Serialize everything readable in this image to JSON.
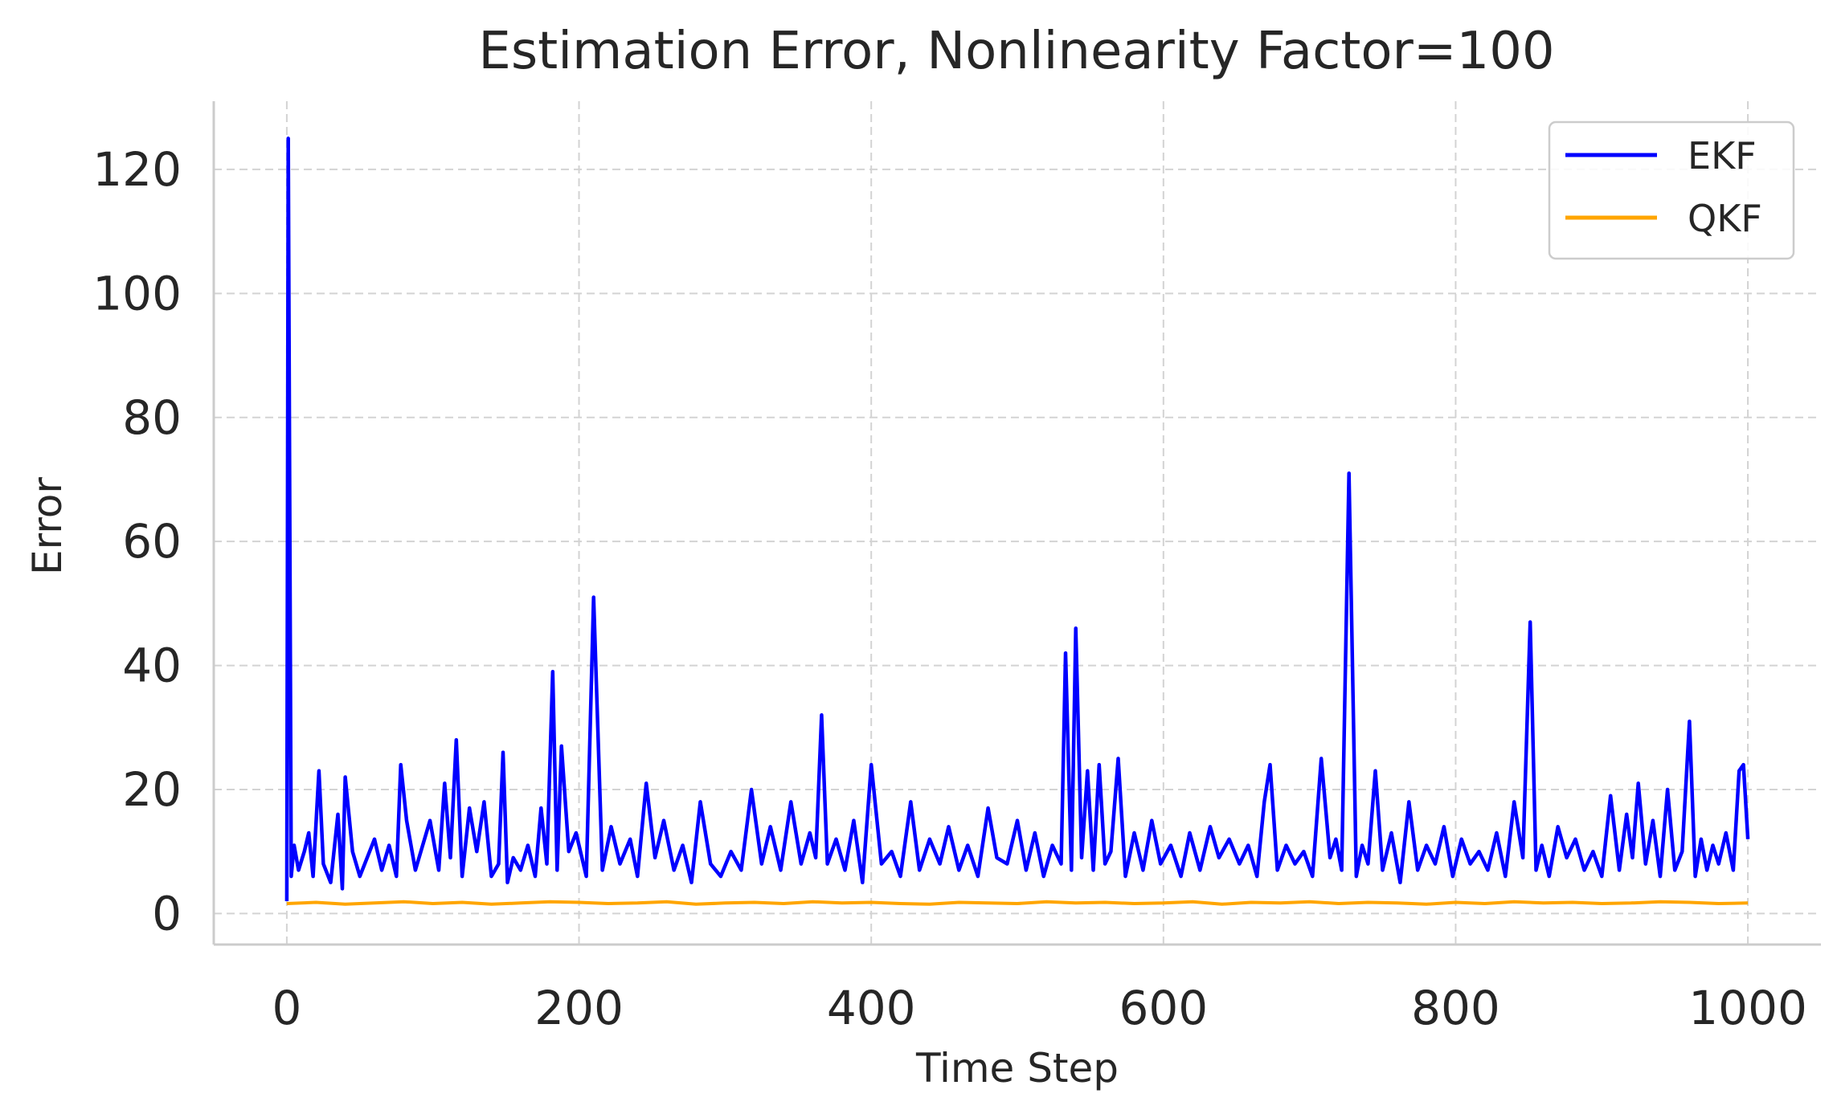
{
  "chart_data": {
    "type": "line",
    "title": "Estimation Error, Nonlinearity Factor=100",
    "xlabel": "Time Step",
    "ylabel": "Error",
    "xlim": [
      -50,
      1050
    ],
    "ylim": [
      -5,
      131
    ],
    "xticks": [
      0,
      200,
      400,
      600,
      800,
      1000
    ],
    "yticks": [
      0,
      20,
      40,
      60,
      80,
      100,
      120
    ],
    "grid": true,
    "legend_position": "top-right",
    "series": [
      {
        "name": "EKF",
        "color": "#0000ff",
        "x": [
          0,
          1,
          3,
          5,
          8,
          12,
          15,
          18,
          22,
          25,
          30,
          35,
          38,
          40,
          45,
          50,
          55,
          60,
          65,
          70,
          75,
          78,
          82,
          88,
          93,
          98,
          104,
          108,
          112,
          116,
          120,
          125,
          130,
          135,
          140,
          145,
          148,
          151,
          155,
          160,
          165,
          170,
          174,
          178,
          182,
          185,
          188,
          193,
          198,
          205,
          210,
          216,
          222,
          228,
          235,
          240,
          246,
          252,
          258,
          265,
          271,
          277,
          283,
          290,
          297,
          304,
          311,
          318,
          325,
          331,
          338,
          345,
          352,
          358,
          362,
          366,
          370,
          376,
          382,
          388,
          394,
          400,
          407,
          414,
          420,
          427,
          433,
          440,
          447,
          453,
          460,
          466,
          473,
          480,
          486,
          493,
          500,
          506,
          512,
          518,
          524,
          530,
          533,
          537,
          540,
          544,
          548,
          552,
          556,
          560,
          564,
          569,
          574,
          580,
          586,
          592,
          598,
          605,
          612,
          618,
          625,
          632,
          638,
          645,
          652,
          658,
          664,
          669,
          673,
          678,
          684,
          690,
          696,
          702,
          708,
          714,
          718,
          722,
          727,
          732,
          736,
          740,
          745,
          750,
          756,
          762,
          768,
          774,
          780,
          786,
          792,
          798,
          804,
          810,
          816,
          822,
          828,
          834,
          840,
          846,
          851,
          855,
          859,
          864,
          870,
          876,
          882,
          888,
          894,
          900,
          906,
          912,
          917,
          921,
          925,
          930,
          935,
          940,
          945,
          950,
          955,
          960,
          964,
          968,
          972,
          976,
          980,
          985,
          990,
          994,
          997,
          1000
        ],
        "values": [
          2,
          125,
          6,
          11,
          7,
          10,
          13,
          6,
          23,
          8,
          5,
          16,
          4,
          22,
          10,
          6,
          9,
          12,
          7,
          11,
          6,
          24,
          15,
          7,
          11,
          15,
          7,
          21,
          9,
          28,
          6,
          17,
          10,
          18,
          6,
          8,
          26,
          5,
          9,
          7,
          11,
          6,
          17,
          8,
          39,
          7,
          27,
          10,
          13,
          6,
          51,
          7,
          14,
          8,
          12,
          6,
          21,
          9,
          15,
          7,
          11,
          5,
          18,
          8,
          6,
          10,
          7,
          20,
          8,
          14,
          7,
          18,
          8,
          13,
          9,
          32,
          8,
          12,
          7,
          15,
          5,
          24,
          8,
          10,
          6,
          18,
          7,
          12,
          8,
          14,
          7,
          11,
          6,
          17,
          9,
          8,
          15,
          7,
          13,
          6,
          11,
          8,
          42,
          7,
          46,
          9,
          23,
          7,
          24,
          8,
          10,
          25,
          6,
          13,
          7,
          15,
          8,
          11,
          6,
          13,
          7,
          14,
          9,
          12,
          8,
          11,
          6,
          18,
          24,
          7,
          11,
          8,
          10,
          6,
          25,
          9,
          12,
          7,
          71,
          6,
          11,
          8,
          23,
          7,
          13,
          5,
          18,
          7,
          11,
          8,
          14,
          6,
          12,
          8,
          10,
          7,
          13,
          6,
          18,
          9,
          47,
          7,
          11,
          6,
          14,
          9,
          12,
          7,
          10,
          6,
          19,
          7,
          16,
          9,
          21,
          8,
          15,
          6,
          20,
          7,
          10,
          31,
          6,
          12,
          7,
          11,
          8,
          13,
          7,
          23,
          24,
          12
        ]
      },
      {
        "name": "QKF",
        "color": "#ffa500",
        "x": [
          0,
          20,
          40,
          60,
          80,
          100,
          120,
          140,
          160,
          180,
          200,
          220,
          240,
          260,
          280,
          300,
          320,
          340,
          360,
          380,
          400,
          420,
          440,
          460,
          480,
          500,
          520,
          540,
          560,
          580,
          600,
          620,
          640,
          660,
          680,
          700,
          720,
          740,
          760,
          780,
          800,
          820,
          840,
          860,
          880,
          900,
          920,
          940,
          960,
          980,
          1000
        ],
        "values": [
          1.6,
          1.8,
          1.5,
          1.7,
          1.9,
          1.6,
          1.8,
          1.5,
          1.7,
          1.9,
          1.8,
          1.6,
          1.7,
          1.9,
          1.5,
          1.7,
          1.8,
          1.6,
          1.9,
          1.7,
          1.8,
          1.6,
          1.5,
          1.8,
          1.7,
          1.6,
          1.9,
          1.7,
          1.8,
          1.6,
          1.7,
          1.9,
          1.5,
          1.8,
          1.7,
          1.9,
          1.6,
          1.8,
          1.7,
          1.5,
          1.8,
          1.6,
          1.9,
          1.7,
          1.8,
          1.6,
          1.7,
          1.9,
          1.8,
          1.6,
          1.7
        ]
      }
    ]
  }
}
